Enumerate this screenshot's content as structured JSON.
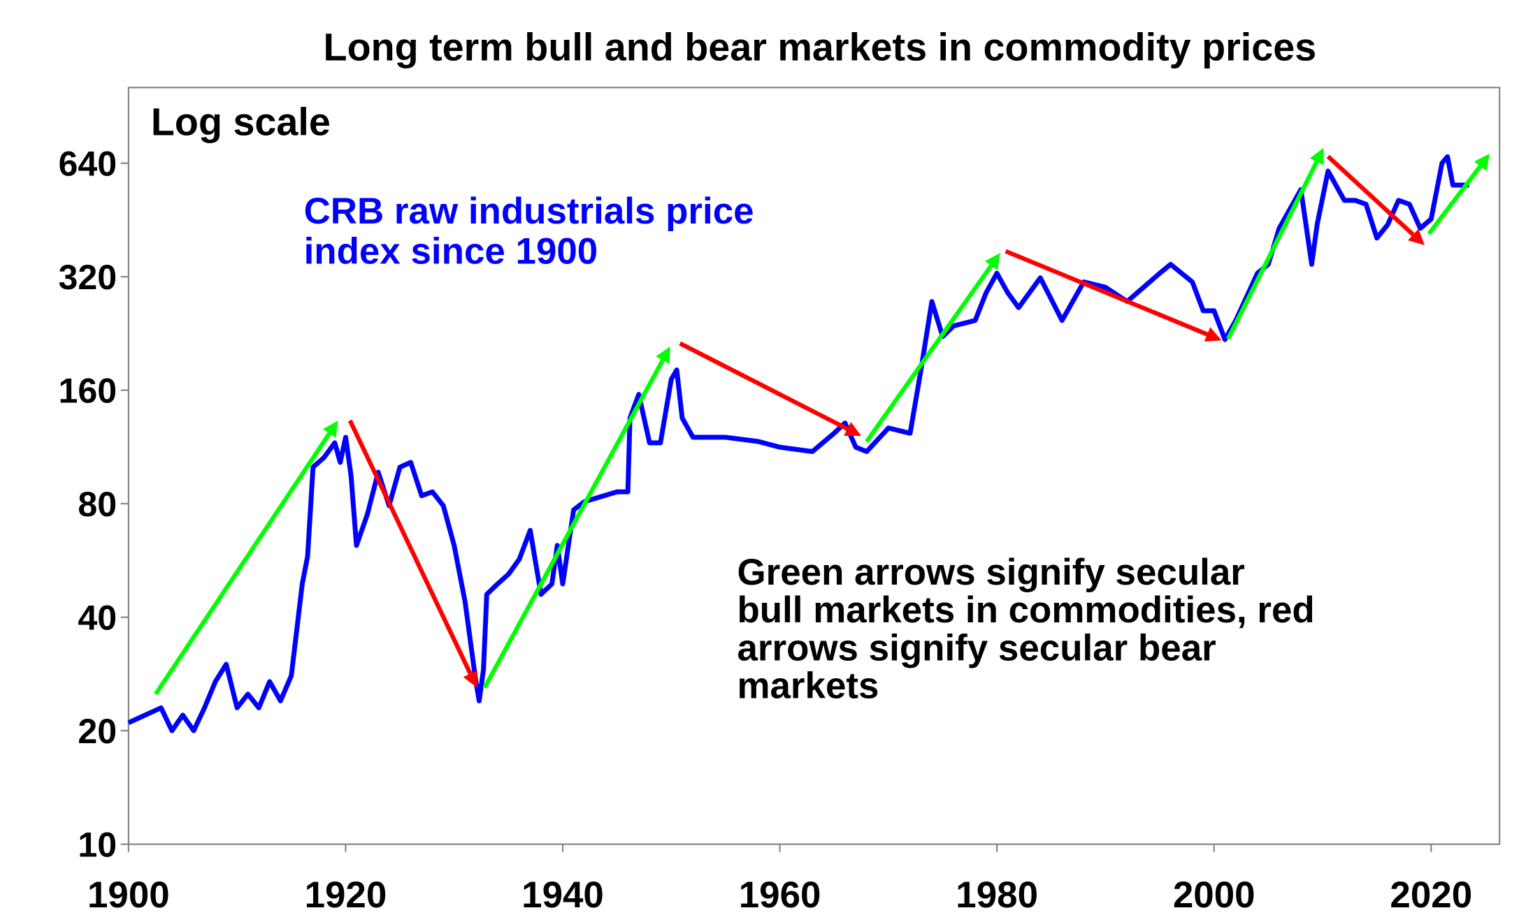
{
  "chart_data": {
    "type": "line",
    "title": "Long term bull and bear markets in commodity prices",
    "scale_note": "Log scale",
    "series_label": [
      "CRB raw industrials price",
      "index since 1900"
    ],
    "annotation": [
      "Green arrows signify secular",
      "bull markets in commodities, red",
      "arrows signify secular bear",
      "markets"
    ],
    "xlim": [
      1900,
      2026.3
    ],
    "ylim": [
      10,
      1016
    ],
    "y_scale": "log2",
    "grid": false,
    "legend": "none",
    "x_ticks": [
      "1900",
      "1920",
      "1940",
      "1960",
      "1980",
      "2000",
      "2020"
    ],
    "y_ticks": [
      "10",
      "20",
      "40",
      "80",
      "160",
      "320",
      "640"
    ],
    "colors": {
      "series": "#0000ff",
      "bull_arrow": "#00ff00",
      "bear_arrow": "#ff0000",
      "text_series": "#0000ff",
      "text": "#000000"
    },
    "series": [
      {
        "x": [
          1900,
          1903,
          1904,
          1905,
          1906,
          1907,
          1908,
          1909,
          1910,
          1911,
          1912,
          1913,
          1914,
          1915,
          1916,
          1916.5,
          1917,
          1918,
          1919,
          1919.5,
          1920,
          1920.5,
          1921,
          1922,
          1923,
          1924,
          1925,
          1926,
          1927,
          1928,
          1929,
          1930,
          1931,
          1932,
          1932.3,
          1932.7,
          1933,
          1934,
          1935,
          1936,
          1937,
          1938,
          1939,
          1939.5,
          1940,
          1941,
          1942,
          1945,
          1946,
          1946.2,
          1947,
          1948,
          1949,
          1950,
          1950.5,
          1951,
          1952,
          1955,
          1958,
          1960,
          1963,
          1965,
          1966,
          1967,
          1968,
          1970,
          1972,
          1973,
          1974,
          1975,
          1976,
          1978,
          1979,
          1980,
          1981,
          1982,
          1984,
          1986,
          1988,
          1990,
          1992,
          1995,
          1996,
          1998,
          1999,
          2000,
          2001,
          2002,
          2004,
          2005,
          2006,
          2008,
          2009,
          2009.5,
          2010.5,
          2011,
          2012,
          2013,
          2014,
          2015,
          2016,
          2017,
          2018,
          2019,
          2020,
          2021,
          2021.5,
          2022,
          2023.5
        ],
        "y": [
          21,
          23,
          20,
          22,
          20,
          23,
          27,
          30,
          23,
          25,
          23,
          27,
          24,
          28,
          49,
          58,
          100,
          106,
          116,
          103,
          120,
          95,
          62,
          75,
          97,
          79,
          100,
          103,
          84,
          86,
          79,
          62,
          44,
          27,
          24,
          29,
          46,
          49,
          52,
          57,
          68,
          46,
          49,
          62,
          49,
          77,
          81,
          86,
          86,
          135,
          156,
          116,
          116,
          171,
          181,
          135,
          120,
          120,
          117,
          113,
          110,
          123,
          131,
          113,
          110,
          127,
          123,
          181,
          275,
          222,
          237,
          245,
          290,
          327,
          290,
          265,
          318,
          245,
          310,
          300,
          275,
          327,
          345,
          310,
          260,
          260,
          218,
          245,
          327,
          345,
          430,
          545,
          345,
          440,
          610,
          575,
          510,
          510,
          498,
          405,
          440,
          510,
          498,
          430,
          455,
          640,
          666,
          560,
          560
        ]
      }
    ],
    "arrows": [
      {
        "trend": "bull",
        "from": [
          1902.5,
          25
        ],
        "to": [
          1919.3,
          133
        ]
      },
      {
        "trend": "bear",
        "from": [
          1920.4,
          133
        ],
        "to": [
          1932.1,
          26
        ]
      },
      {
        "trend": "bull",
        "from": [
          1932.8,
          26
        ],
        "to": [
          1949.9,
          209
        ]
      },
      {
        "trend": "bear",
        "from": [
          1950.8,
          213
        ],
        "to": [
          1967.5,
          121
        ]
      },
      {
        "trend": "bull",
        "from": [
          1968.0,
          117
        ],
        "to": [
          1980.3,
          370
        ]
      },
      {
        "trend": "bear",
        "from": [
          1980.8,
          374
        ],
        "to": [
          2000.7,
          217
        ]
      },
      {
        "trend": "bull",
        "from": [
          2001.3,
          219
        ],
        "to": [
          2010.1,
          703
        ]
      },
      {
        "trend": "bear",
        "from": [
          2010.5,
          667
        ],
        "to": [
          2019.4,
          388
        ]
      },
      {
        "trend": "bull",
        "from": [
          2019.8,
          416
        ],
        "to": [
          2025.4,
          678
        ]
      }
    ]
  }
}
